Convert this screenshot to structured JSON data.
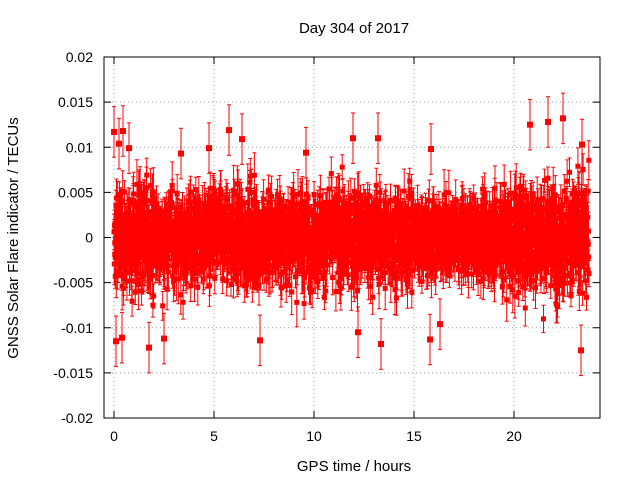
{
  "chart_data": {
    "type": "scatter",
    "title": "Day 304 of 2017",
    "xlabel": "GPS time / hours",
    "ylabel": "GNSS Solar Flare indicator / TECUs",
    "xlim": [
      -0.5,
      24.3
    ],
    "ylim": [
      -0.02,
      0.02
    ],
    "x_ticks": [
      0,
      5,
      10,
      15,
      20
    ],
    "x_tick_labels": [
      "0",
      "5",
      "10",
      "15",
      "20"
    ],
    "y_ticks": [
      0.02,
      0.015,
      0.01,
      0.005,
      0,
      -0.005,
      -0.01,
      -0.015,
      -0.02
    ],
    "y_tick_labels": [
      "0.02",
      "0.015",
      "0.01",
      "0.005",
      "0",
      "-0.005",
      "-0.01",
      "-0.015",
      "-0.02"
    ],
    "grid": true,
    "marker_color": "#ff0000",
    "series": [
      {
        "name": "solar flare indicator",
        "x_start": 0.0,
        "x_end": 23.75,
        "point_count": 2880,
        "typical_spread": 0.0045,
        "typical_error": 0.002,
        "highlighted_points": [
          {
            "x": 0.0,
            "y": 0.0117
          },
          {
            "x": 0.45,
            "y": 0.0118
          },
          {
            "x": 0.25,
            "y": 0.0104
          },
          {
            "x": 0.75,
            "y": 0.0099
          },
          {
            "x": 0.1,
            "y": -0.0115
          },
          {
            "x": 0.4,
            "y": -0.0111
          },
          {
            "x": 1.75,
            "y": -0.0122
          },
          {
            "x": 2.5,
            "y": -0.0112
          },
          {
            "x": 3.35,
            "y": 0.0093
          },
          {
            "x": 4.75,
            "y": 0.0099
          },
          {
            "x": 5.75,
            "y": 0.0119
          },
          {
            "x": 6.4,
            "y": 0.0109
          },
          {
            "x": 7.3,
            "y": -0.0114
          },
          {
            "x": 9.6,
            "y": 0.0094
          },
          {
            "x": 11.95,
            "y": 0.011
          },
          {
            "x": 12.2,
            "y": -0.0105
          },
          {
            "x": 13.2,
            "y": 0.011
          },
          {
            "x": 13.35,
            "y": -0.0118
          },
          {
            "x": 15.85,
            "y": 0.0098
          },
          {
            "x": 15.8,
            "y": -0.0113
          },
          {
            "x": 16.3,
            "y": -0.0096
          },
          {
            "x": 20.8,
            "y": 0.0125
          },
          {
            "x": 21.7,
            "y": 0.0128
          },
          {
            "x": 22.45,
            "y": 0.0132
          },
          {
            "x": 23.35,
            "y": -0.0125
          },
          {
            "x": 23.4,
            "y": 0.0103
          }
        ]
      }
    ]
  }
}
